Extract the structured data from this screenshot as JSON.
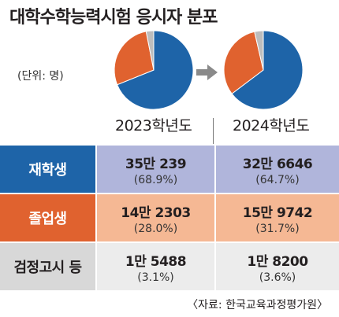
{
  "header": {
    "title": "대학수학능력시험 응시자 분포",
    "unit": "(단위: 명)"
  },
  "colors": {
    "repeat": "#1e64a8",
    "graduate": "#e0622f",
    "other": "#bdbdbd"
  },
  "chart_data": [
    {
      "type": "pie",
      "title": "2023학년도",
      "labels": [
        "재학생",
        "졸업생",
        "검정고시 등"
      ],
      "values": [
        68.9,
        28.0,
        3.1
      ]
    },
    {
      "type": "pie",
      "title": "2024학년도",
      "labels": [
        "재학생",
        "졸업생",
        "검정고시 등"
      ],
      "values": [
        64.7,
        31.7,
        3.6
      ]
    }
  ],
  "table": {
    "columns": [
      "2023학년도",
      "2024학년도"
    ],
    "rows": [
      {
        "label": "재학생",
        "cells": [
          {
            "count": "35만 239",
            "pct": "(68.9%)"
          },
          {
            "count": "32만 6646",
            "pct": "(64.7%)"
          }
        ]
      },
      {
        "label": "졸업생",
        "cells": [
          {
            "count": "14만 2303",
            "pct": "(28.0%)"
          },
          {
            "count": "15만 9742",
            "pct": "(31.7%)"
          }
        ]
      },
      {
        "label": "검정고시 등",
        "cells": [
          {
            "count": "1만 5488",
            "pct": "(3.1%)"
          },
          {
            "count": "1만 8200",
            "pct": "(3.6%)"
          }
        ]
      }
    ]
  },
  "source": "〈자료: 한국교육과정평가원〉"
}
